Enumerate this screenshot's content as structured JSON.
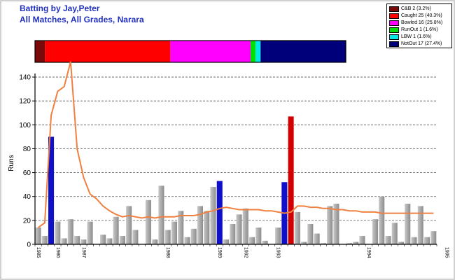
{
  "header": {
    "title_line1": "Batting by Jay,Peter",
    "title_line2": "All Matches, All Grades, Narara"
  },
  "legend": {
    "items": [
      {
        "label": "C&B 2 (3.2%)",
        "color": "#7a0a0a"
      },
      {
        "label": "Caught 25 (40.3%)",
        "color": "#ff0000"
      },
      {
        "label": "Bowled 16 (25.8%)",
        "color": "#ff00ff"
      },
      {
        "label": "RunOut 1 (1.6%)",
        "color": "#00e000"
      },
      {
        "label": "LBW 1 (1.6%)",
        "color": "#00e8e8"
      },
      {
        "label": "NotOut 17 (27.4%)",
        "color": "#00007a"
      }
    ]
  },
  "colors": {
    "default_bar": "#a6a6a6",
    "notout_bar": "#1010c8",
    "highlight_bar": "#d00000",
    "average_line": "#f08040",
    "grid": "#555555"
  },
  "chart_data": [
    {
      "type": "bar",
      "title": "",
      "categories": [
        "C&B",
        "Caught",
        "Bowled",
        "RunOut",
        "LBW",
        "NotOut"
      ],
      "values": [
        2,
        25,
        16,
        1,
        1,
        17
      ],
      "stacked": true
    },
    {
      "type": "bar",
      "title": "",
      "xlabel": "",
      "ylabel": "Runs",
      "ylim": [
        0,
        150
      ],
      "yticks": [
        0,
        20,
        40,
        60,
        80,
        100,
        120,
        140
      ],
      "grid": true,
      "year_labels": [
        "1985",
        "1986",
        "1987",
        "1988",
        "1989",
        "1992",
        "1993",
        "1994",
        "1995"
      ],
      "year_positions": [
        0,
        3,
        7,
        20,
        28,
        32,
        37,
        51,
        63
      ],
      "values": [
        14,
        7,
        90,
        19,
        5,
        21,
        7,
        4,
        19,
        0,
        8,
        5,
        23,
        7,
        32,
        12,
        0,
        37,
        4,
        49,
        12,
        19,
        28,
        6,
        13,
        32,
        28,
        48,
        53,
        4,
        17,
        25,
        30,
        6,
        14,
        3,
        0,
        14,
        52,
        107,
        27,
        2,
        17,
        9,
        1,
        32,
        34,
        0,
        1,
        2,
        7,
        0,
        21,
        40,
        7,
        18,
        2,
        34,
        6,
        32,
        6,
        11
      ],
      "bar_status": [
        "",
        "",
        "notout",
        "",
        "",
        "",
        "",
        "",
        "",
        "",
        "",
        "",
        "",
        "",
        "",
        "",
        "",
        "",
        "",
        "",
        "",
        "",
        "",
        "",
        "",
        "",
        "",
        "",
        "notout",
        "",
        "",
        "",
        "",
        "",
        "",
        "",
        "",
        "",
        "notout",
        "caught",
        "",
        "",
        "",
        "",
        "",
        "",
        "",
        "",
        "",
        "",
        "",
        "",
        "",
        "",
        "",
        "",
        "",
        "",
        "",
        "",
        "",
        ""
      ],
      "series": [
        {
          "type": "line",
          "values": [
            14,
            18,
            108,
            128,
            132,
            153,
            80,
            56,
            42,
            38,
            32,
            28,
            25,
            23,
            24,
            23,
            22,
            23,
            22,
            23,
            23,
            23,
            24,
            24,
            24,
            25,
            27,
            28,
            30,
            31,
            30,
            29,
            29,
            29,
            29,
            28,
            28,
            27,
            26,
            27,
            32,
            32,
            31,
            31,
            30,
            30,
            29,
            29,
            28,
            28,
            27,
            27,
            27,
            26,
            26,
            26,
            26,
            26,
            26,
            26,
            26,
            26
          ]
        }
      ]
    }
  ]
}
